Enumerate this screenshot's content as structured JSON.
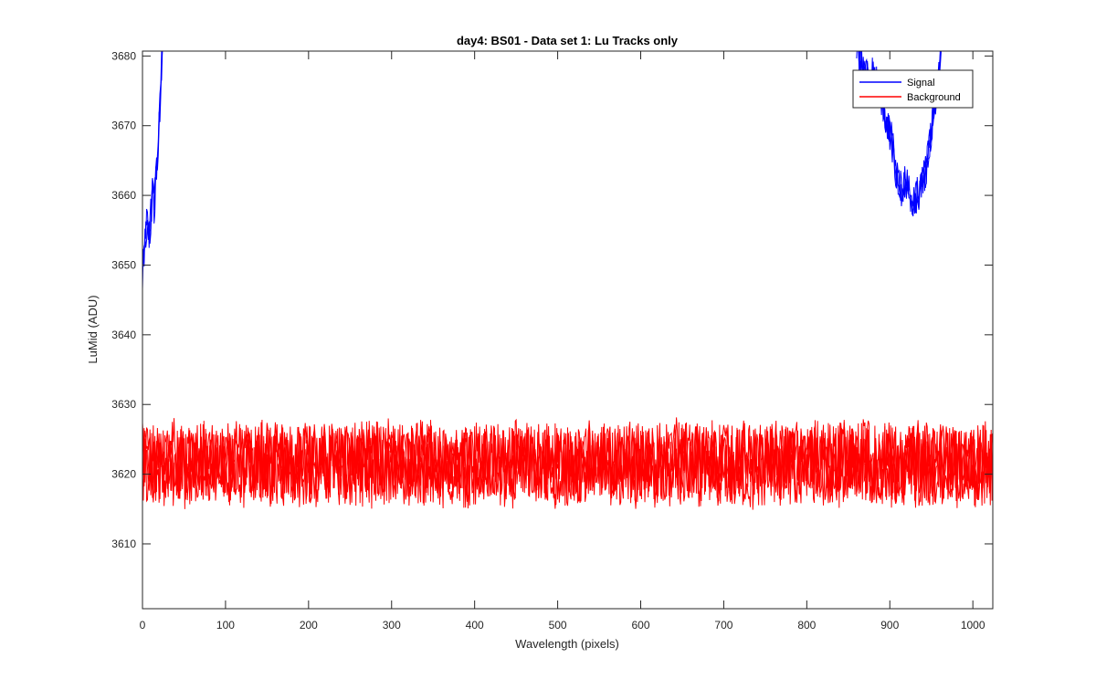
{
  "chart_data": {
    "type": "line",
    "title": "day4: BS01 - Data set 1: Lu Tracks only",
    "xlabel": "Wavelength (pixels)",
    "ylabel": "LuMid (ADU)",
    "xlim": [
      0,
      1024
    ],
    "ylim": [
      3600.7,
      3680.7
    ],
    "xticks": [
      0,
      100,
      200,
      300,
      400,
      500,
      600,
      700,
      800,
      900,
      1000
    ],
    "yticks": [
      3610,
      3620,
      3630,
      3640,
      3650,
      3660,
      3670,
      3680
    ],
    "grid": false,
    "legend_position": "top-right",
    "series": [
      {
        "name": "Signal",
        "color": "#0000ff",
        "segments": [
          {
            "x": [
              0,
              2,
              4,
              6,
              8,
              10,
              12,
              14,
              16,
              18,
              20,
              22,
              24
            ],
            "y": [
              3649,
              3652,
              3655,
              3656,
              3654,
              3657,
              3660,
              3658,
              3662,
              3665,
              3670,
              3676,
              3681
            ]
          },
          {
            "x": [
              860,
              866,
              872,
              878,
              884,
              890,
              896,
              902,
              908,
              914,
              920,
              926,
              932,
              938,
              944,
              950,
              956,
              962
            ],
            "y": [
              3681,
              3679,
              3677,
              3678,
              3676,
              3674,
              3671,
              3668,
              3663,
              3661,
              3662,
              3659,
              3660,
              3661,
              3664,
              3669,
              3675,
              3681
            ]
          }
        ]
      },
      {
        "name": "Background",
        "color": "#ff0000",
        "band": {
          "x_start": 0,
          "x_end": 1024,
          "center": 3621.5,
          "amplitude": 5.5,
          "min": 3611,
          "max": 3630.2
        }
      }
    ]
  }
}
